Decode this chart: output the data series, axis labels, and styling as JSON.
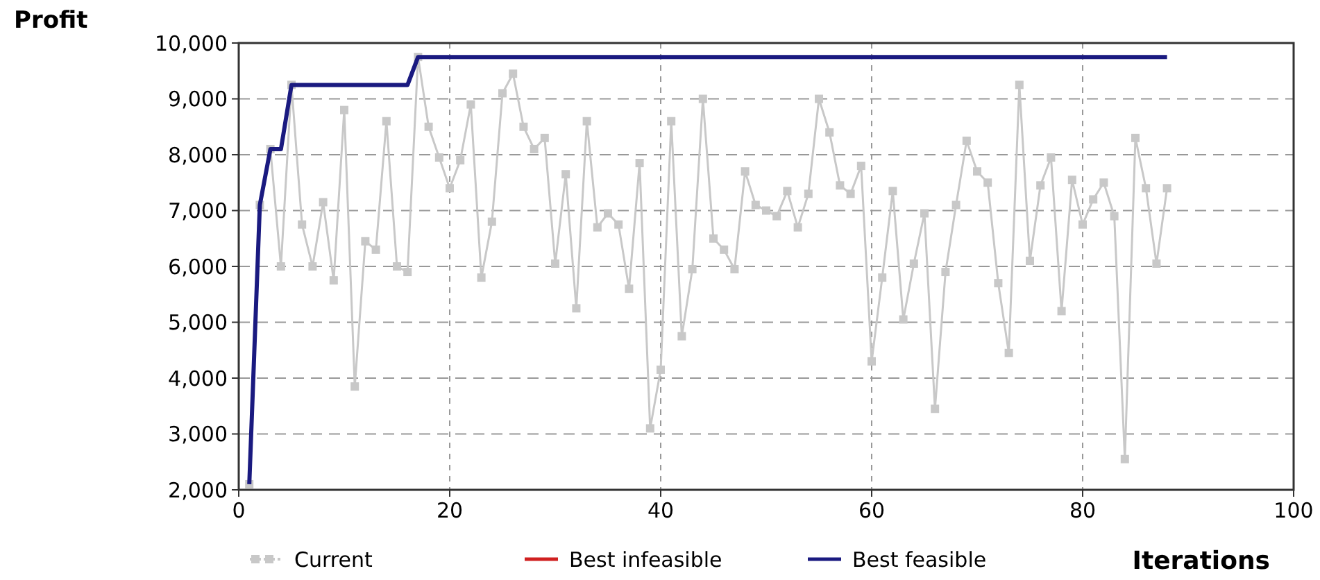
{
  "chart_data": {
    "type": "line",
    "ylabel": "Profit",
    "xlabel": "Iterations",
    "xlim": [
      0,
      100
    ],
    "xticks": [
      0,
      20,
      40,
      60,
      80,
      100
    ],
    "ylim": [
      2000,
      10000
    ],
    "yticks": [
      {
        "value": 2000,
        "label": "2,000"
      },
      {
        "value": 3000,
        "label": "3,000"
      },
      {
        "value": 4000,
        "label": "4,000"
      },
      {
        "value": 5000,
        "label": "5,000"
      },
      {
        "value": 6000,
        "label": "6,000"
      },
      {
        "value": 7000,
        "label": "7,000"
      },
      {
        "value": 8000,
        "label": "8,000"
      },
      {
        "value": 9000,
        "label": "9,000"
      },
      {
        "value": 10000,
        "label": "10,000"
      }
    ],
    "grid": true,
    "legend": "bottom",
    "series": [
      {
        "name": "Current",
        "color": "#c8c8c8",
        "marker": "square",
        "x": [
          1,
          2,
          3,
          4,
          5,
          6,
          7,
          8,
          9,
          10,
          11,
          12,
          13,
          14,
          15,
          16,
          17,
          18,
          19,
          20,
          21,
          22,
          23,
          24,
          25,
          26,
          27,
          28,
          29,
          30,
          31,
          32,
          33,
          34,
          35,
          36,
          37,
          38,
          39,
          40,
          41,
          42,
          43,
          44,
          45,
          46,
          47,
          48,
          49,
          50,
          51,
          52,
          53,
          54,
          55,
          56,
          57,
          58,
          59,
          60,
          61,
          62,
          63,
          64,
          65,
          66,
          67,
          68,
          69,
          70,
          71,
          72,
          73,
          74,
          75,
          76,
          77,
          78,
          79,
          80,
          81,
          82,
          83,
          84,
          85,
          86,
          87,
          88
        ],
        "values": [
          2100,
          7100,
          8100,
          6000,
          9250,
          6750,
          6000,
          7150,
          5750,
          8800,
          3850,
          6450,
          6300,
          8600,
          6000,
          5900,
          9750,
          8500,
          7950,
          7400,
          7900,
          8900,
          5800,
          6800,
          9100,
          9450,
          8500,
          8100,
          8300,
          6050,
          7650,
          5250,
          8600,
          6700,
          6950,
          6750,
          5600,
          7850,
          3100,
          4150,
          8600,
          4750,
          5950,
          9000,
          6500,
          6300,
          5950,
          7700,
          7100,
          7000,
          6900,
          7350,
          6700,
          7300,
          9000,
          8400,
          7450,
          7300,
          7800,
          4300,
          5800,
          7350,
          5050,
          6050,
          6950,
          3450,
          5900,
          7100,
          8250,
          7700,
          7500,
          5700,
          4450,
          9250,
          6100,
          7450,
          7950,
          5200,
          7550,
          6750,
          7200,
          7500,
          6900,
          2550,
          8300,
          7400,
          6050,
          7400
        ]
      },
      {
        "name": "Best infeasible",
        "color": "#d02020",
        "marker": "none"
      },
      {
        "name": "Best feasible",
        "color": "#1a1a80",
        "marker": "none",
        "x": [
          1,
          2,
          3,
          4,
          5,
          16,
          17,
          88
        ],
        "values": [
          2100,
          7100,
          8100,
          8100,
          9250,
          9250,
          9750,
          9750
        ]
      }
    ]
  }
}
